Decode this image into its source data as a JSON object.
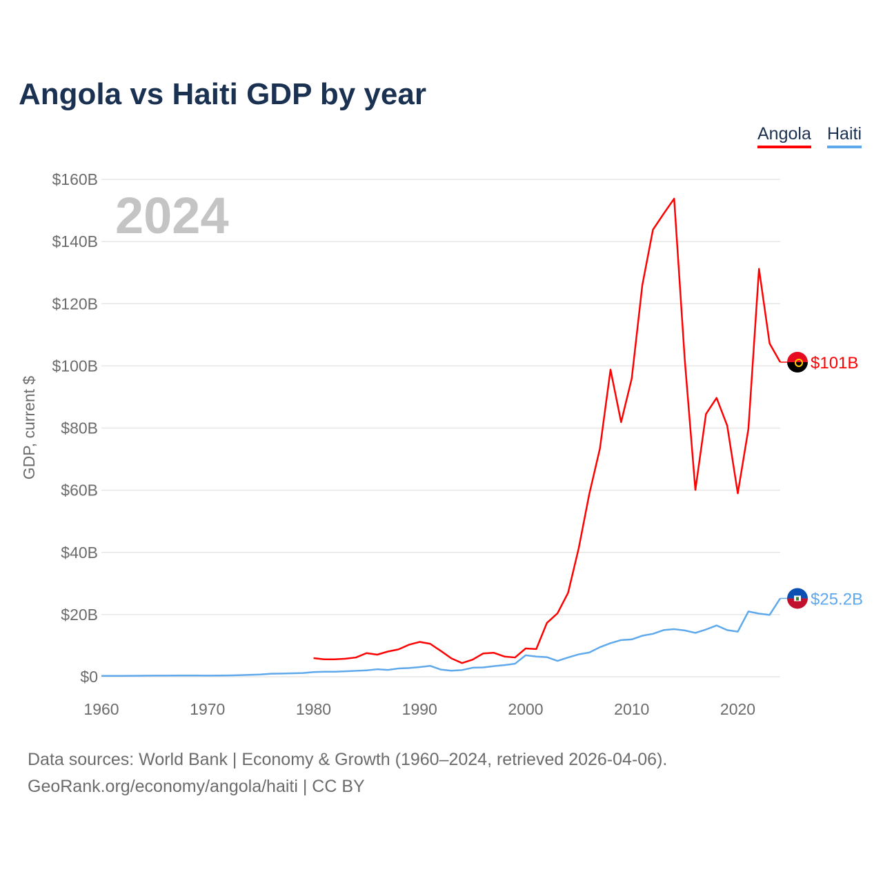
{
  "title": "Angola vs Haiti GDP by year",
  "legend": [
    {
      "label": "Angola",
      "color": "#ff0000"
    },
    {
      "label": "Haiti",
      "color": "#5ea8ec"
    }
  ],
  "footer": {
    "line1": "Data sources: World Bank | Economy & Growth (1960–2024, retrieved 2026-04-06).",
    "line2": "GeoRank.org/economy/angola/haiti | CC BY"
  },
  "chart_data": {
    "type": "line",
    "title": "Angola vs Haiti GDP by year",
    "year_watermark": "2024",
    "xlabel": "",
    "ylabel": "GDP, current $",
    "xlim": [
      1960,
      2024
    ],
    "ylim": [
      0,
      160
    ],
    "x_ticks": [
      1960,
      1970,
      1980,
      1990,
      2000,
      2010,
      2020
    ],
    "y_ticks": [
      0,
      20,
      40,
      60,
      80,
      100,
      120,
      140,
      160
    ],
    "y_tick_labels": [
      "$0",
      "$20B",
      "$40B",
      "$60B",
      "$80B",
      "$100B",
      "$120B",
      "$140B",
      "$160B"
    ],
    "grid": true,
    "legend_position": "top-right",
    "series": [
      {
        "name": "Angola",
        "color": "#ff0000",
        "flag": "angola-flag",
        "end_label": "$101B",
        "start_year": 1980,
        "values": [
          6.0,
          5.6,
          5.6,
          5.8,
          6.2,
          7.6,
          7.1,
          8.1,
          8.8,
          10.3,
          11.2,
          10.6,
          8.3,
          5.9,
          4.4,
          5.5,
          7.5,
          7.7,
          6.5,
          6.2,
          9.1,
          8.9,
          17.3,
          20.4,
          27.0,
          41.3,
          58.8,
          73.4,
          98.8,
          81.9,
          95.9,
          126.0,
          143.8,
          148.9,
          153.8,
          102.0,
          60.1,
          84.5,
          89.7,
          80.8,
          59.0,
          79.7,
          131.2,
          107.2,
          101.2
        ]
      },
      {
        "name": "Haiti",
        "color": "#5ea8ec",
        "flag": "haiti-flag",
        "end_label": "$25.2B",
        "start_year": 1960,
        "values": [
          0.27,
          0.27,
          0.29,
          0.3,
          0.33,
          0.35,
          0.37,
          0.38,
          0.39,
          0.38,
          0.36,
          0.39,
          0.42,
          0.49,
          0.6,
          0.73,
          0.96,
          1.04,
          1.11,
          1.2,
          1.5,
          1.6,
          1.6,
          1.75,
          1.9,
          2.05,
          2.4,
          2.2,
          2.65,
          2.8,
          3.1,
          3.5,
          2.3,
          1.95,
          2.15,
          2.9,
          3.0,
          3.4,
          3.75,
          4.2,
          6.9,
          6.5,
          6.3,
          5.1,
          6.2,
          7.2,
          7.8,
          9.5,
          10.8,
          11.8,
          12.0,
          13.2,
          13.8,
          15.0,
          15.3,
          14.9,
          14.1,
          15.2,
          16.5,
          15.0,
          14.5,
          21.0,
          20.3,
          19.9,
          25.2
        ]
      }
    ]
  }
}
